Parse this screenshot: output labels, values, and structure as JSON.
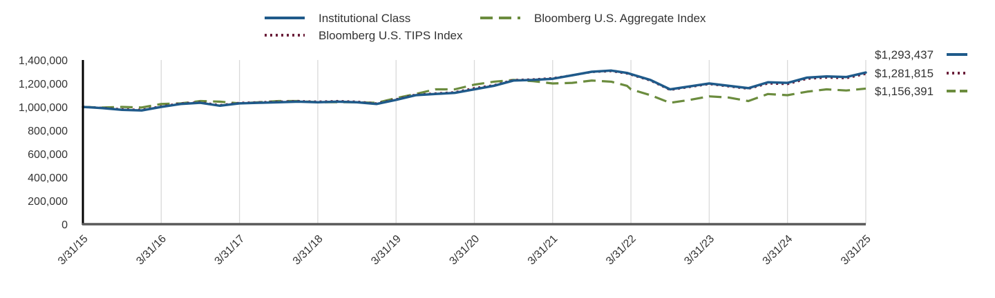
{
  "chart_data": {
    "type": "line",
    "title": "",
    "xlabel": "",
    "ylabel": "",
    "ylim": [
      0,
      1400000
    ],
    "yticks": [
      0,
      200000,
      400000,
      600000,
      800000,
      1000000,
      1200000,
      1400000
    ],
    "ytick_labels": [
      "0",
      "200,000",
      "400,000",
      "600,000",
      "800,000",
      "1,000,000",
      "1,200,000",
      "1,400,000"
    ],
    "xlim": [
      2015.25,
      2025.25
    ],
    "xticks": [
      2015.25,
      2016.25,
      2017.25,
      2018.25,
      2019.25,
      2020.25,
      2021.25,
      2022.25,
      2023.25,
      2024.25,
      2025.25
    ],
    "xtick_labels": [
      "3/31/15",
      "3/31/16",
      "3/31/17",
      "3/31/18",
      "3/31/19",
      "3/31/20",
      "3/31/21",
      "3/31/22",
      "3/31/23",
      "3/31/24",
      "3/31/25"
    ],
    "grid": "vertical",
    "legend_position": "top",
    "series": [
      {
        "name": "Institutional Class",
        "color": "#1f5a8a",
        "style": "solid",
        "end_label": "$1,293,437",
        "x": [
          2015.25,
          2015.5,
          2015.75,
          2016.0,
          2016.25,
          2016.5,
          2016.75,
          2017.0,
          2017.25,
          2017.5,
          2017.75,
          2018.0,
          2018.25,
          2018.5,
          2018.75,
          2019.0,
          2019.25,
          2019.5,
          2019.75,
          2020.0,
          2020.25,
          2020.5,
          2020.75,
          2021.0,
          2021.25,
          2021.5,
          2021.75,
          2022.0,
          2022.2,
          2022.25,
          2022.5,
          2022.75,
          2023.0,
          2023.25,
          2023.5,
          2023.75,
          2024.0,
          2024.25,
          2024.5,
          2024.75,
          2025.0,
          2025.25
        ],
        "y": [
          1000000,
          990000,
          975000,
          970000,
          1000000,
          1025000,
          1035000,
          1010000,
          1030000,
          1035000,
          1040000,
          1045000,
          1040000,
          1045000,
          1040000,
          1025000,
          1060000,
          1100000,
          1110000,
          1120000,
          1150000,
          1180000,
          1225000,
          1230000,
          1240000,
          1270000,
          1300000,
          1310000,
          1290000,
          1280000,
          1230000,
          1150000,
          1175000,
          1200000,
          1180000,
          1160000,
          1210000,
          1205000,
          1250000,
          1260000,
          1255000,
          1293437
        ]
      },
      {
        "name": "Bloomberg U.S. TIPS Index",
        "color": "#6b1f3a",
        "style": "dotted",
        "end_label": "$1,281,815",
        "x": [
          2015.25,
          2015.5,
          2015.75,
          2016.0,
          2016.25,
          2016.5,
          2016.75,
          2017.0,
          2017.25,
          2017.5,
          2017.75,
          2018.0,
          2018.25,
          2018.5,
          2018.75,
          2019.0,
          2019.25,
          2019.5,
          2019.75,
          2020.0,
          2020.25,
          2020.5,
          2020.75,
          2021.0,
          2021.25,
          2021.5,
          2021.75,
          2022.0,
          2022.2,
          2022.25,
          2022.5,
          2022.75,
          2023.0,
          2023.25,
          2023.5,
          2023.75,
          2024.0,
          2024.25,
          2024.5,
          2024.75,
          2025.0,
          2025.25
        ],
        "y": [
          1000000,
          992000,
          980000,
          975000,
          1005000,
          1030000,
          1040000,
          1015000,
          1035000,
          1040000,
          1045000,
          1050000,
          1045000,
          1050000,
          1045000,
          1030000,
          1065000,
          1105000,
          1115000,
          1125000,
          1160000,
          1185000,
          1230000,
          1235000,
          1245000,
          1270000,
          1298000,
          1305000,
          1285000,
          1275000,
          1225000,
          1145000,
          1170000,
          1195000,
          1175000,
          1155000,
          1200000,
          1195000,
          1240000,
          1250000,
          1245000,
          1281815
        ]
      },
      {
        "name": "Bloomberg U.S. Aggregate Index",
        "color": "#6b8c3e",
        "style": "dashed",
        "end_label": "$1,156,391",
        "x": [
          2015.25,
          2015.5,
          2015.75,
          2016.0,
          2016.25,
          2016.5,
          2016.75,
          2017.0,
          2017.25,
          2017.5,
          2017.75,
          2018.0,
          2018.25,
          2018.5,
          2018.75,
          2019.0,
          2019.25,
          2019.5,
          2019.75,
          2020.0,
          2020.25,
          2020.5,
          2020.75,
          2021.0,
          2021.25,
          2021.5,
          2021.75,
          2022.0,
          2022.2,
          2022.25,
          2022.5,
          2022.75,
          2023.0,
          2023.25,
          2023.5,
          2023.75,
          2024.0,
          2024.25,
          2024.5,
          2024.75,
          2025.0,
          2025.25
        ],
        "y": [
          1000000,
          995000,
          1000000,
          995000,
          1025000,
          1030000,
          1050000,
          1045000,
          1030000,
          1040000,
          1050000,
          1050000,
          1040000,
          1040000,
          1040000,
          1035000,
          1075000,
          1110000,
          1150000,
          1150000,
          1190000,
          1215000,
          1230000,
          1220000,
          1200000,
          1205000,
          1225000,
          1215000,
          1180000,
          1150000,
          1100000,
          1035000,
          1060000,
          1090000,
          1080000,
          1050000,
          1110000,
          1100000,
          1130000,
          1150000,
          1140000,
          1156391
        ]
      }
    ]
  }
}
